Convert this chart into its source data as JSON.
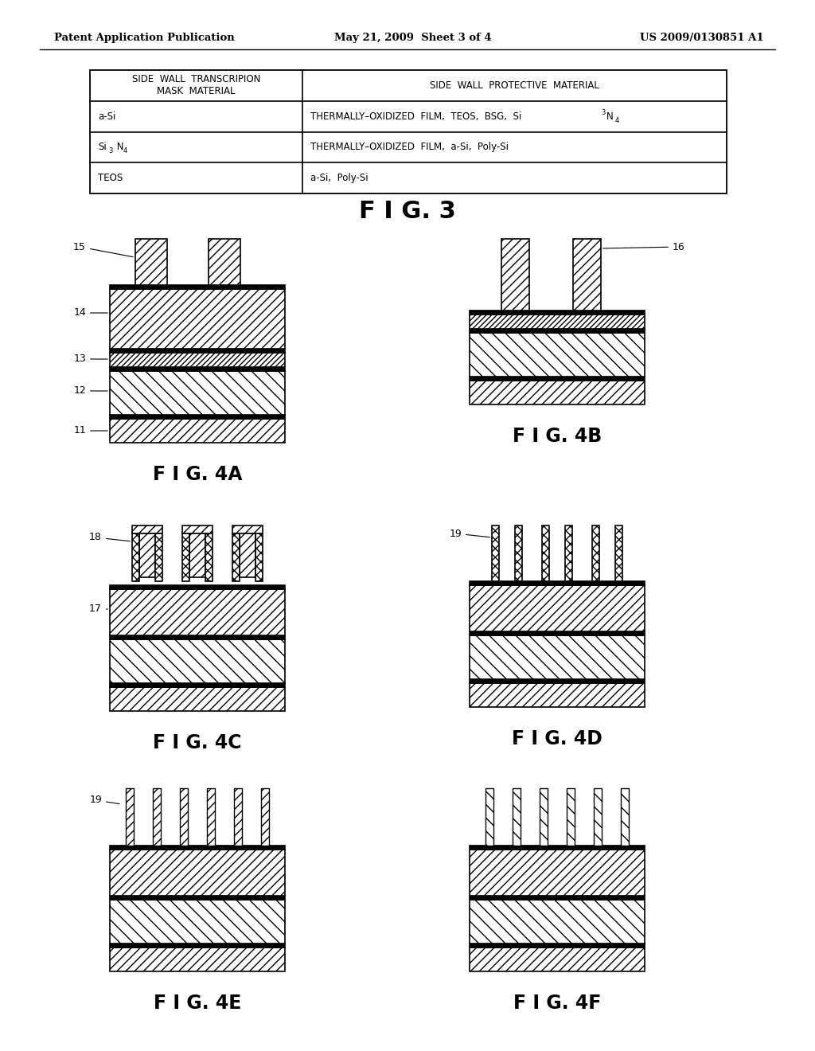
{
  "header_left": "Patent Application Publication",
  "header_mid": "May 21, 2009  Sheet 3 of 4",
  "header_right": "US 2009/0130851 A1",
  "bg_color": "#ffffff",
  "fig3_label": "F I G. 3",
  "fig4a_label": "F I G. 4A",
  "fig4b_label": "F I G. 4B",
  "fig4c_label": "F I G. 4C",
  "fig4d_label": "F I G. 4D",
  "fig4e_label": "F I G. 4E",
  "fig4f_label": "F I G. 4F"
}
